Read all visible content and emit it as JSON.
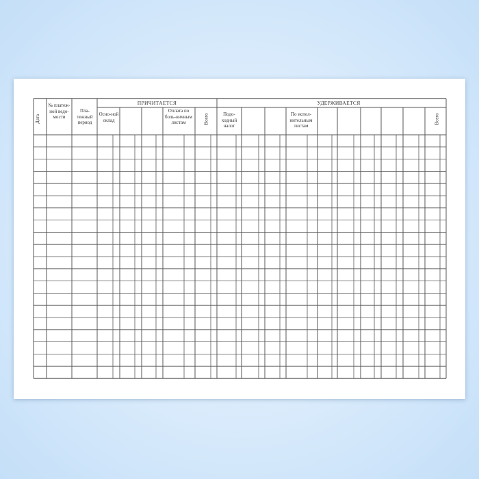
{
  "form": {
    "date": "Дата",
    "statement_no": "№ платеж-ной ведо-мости",
    "pay_period": "Пла-тежный период",
    "accrued_group": "ПРИЧИТАЕТСЯ",
    "base_salary": "Осно-ной оклад",
    "sick_pay": "Оплата по боль-ничным листам",
    "accrued_total": "Всего",
    "withheld_group": "УДЕРЖИВАЕТСЯ",
    "income_tax": "Подо-ходный налог",
    "writs": "По испол-нительным листам",
    "withheld_total": "Всего"
  },
  "colors": {
    "background": "#d6e9fb",
    "lines": "#555555"
  }
}
